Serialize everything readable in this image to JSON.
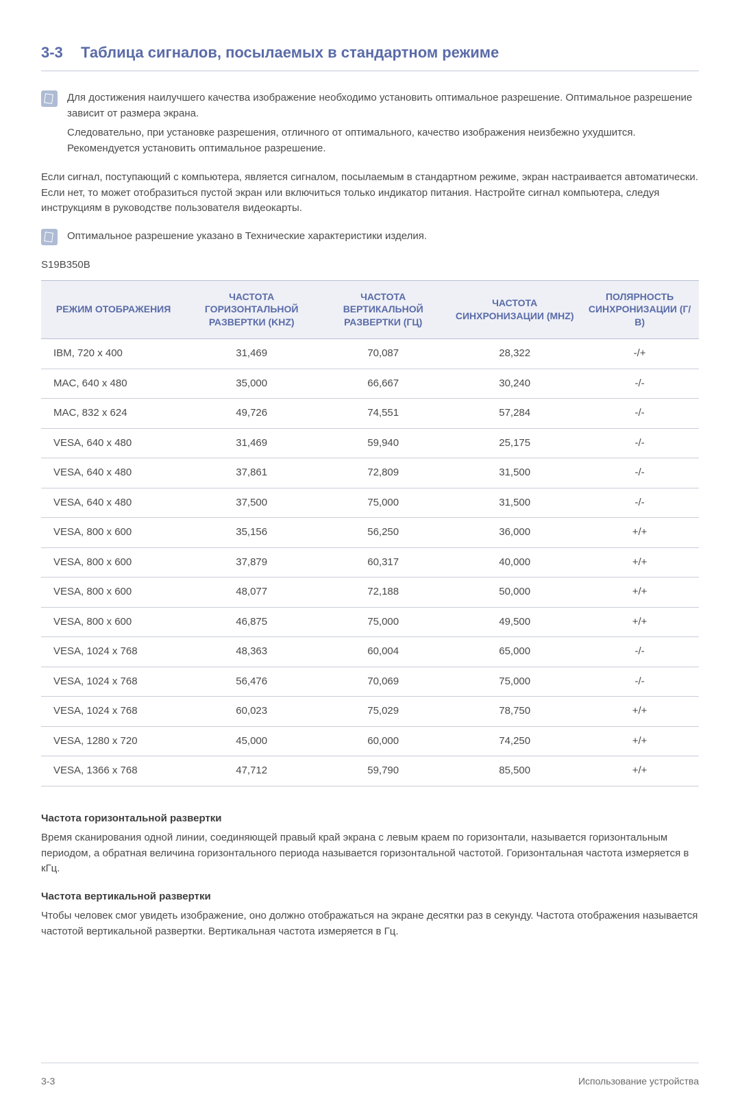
{
  "header": {
    "section_number": "3-3",
    "section_title": "Таблица сигналов, посылаемых в стандартном режиме"
  },
  "note1": {
    "p1": "Для достижения наилучшего качества изображение необходимо установить оптимальное разрешение. Оптимальное разрешение зависит от размера экрана.",
    "p2": "Следовательно, при установке разрешения, отличного от оптимального, качество изображения неизбежно ухудшится. Рекомендуется установить оптимальное разрешение."
  },
  "body_para": "Если сигнал, поступающий с компьютера, является сигналом, посылаемым в стандартном режиме, экран настраивается автоматически. Если нет, то может отобразиться пустой экран или включиться только индикатор питания. Настройте сигнал компьютера, следуя инструкциям в руководстве пользователя видеокарты.",
  "note2": {
    "p1": "Оптимальное разрешение указано в Технические характеристики изделия."
  },
  "model": "S19B350B",
  "table": {
    "columns": [
      "РЕЖИМ ОТОБРАЖЕНИЯ",
      "ЧАСТОТА ГОРИЗОНТАЛЬНОЙ РАЗВЕРТКИ (KHZ)",
      "ЧАСТОТА ВЕРТИКАЛЬНОЙ РАЗВЕРТКИ (ГЦ)",
      "ЧАСТОТА СИНХРОНИЗАЦИИ (MHZ)",
      "ПОЛЯРНОСТЬ СИНХРОНИЗАЦИИ (Г/В)"
    ],
    "rows": [
      [
        "IBM, 720 x 400",
        "31,469",
        "70,087",
        "28,322",
        "-/+"
      ],
      [
        "MAC, 640 x 480",
        "35,000",
        "66,667",
        "30,240",
        "-/-"
      ],
      [
        "MAC, 832 x 624",
        "49,726",
        "74,551",
        "57,284",
        "-/-"
      ],
      [
        "VESA, 640 x 480",
        "31,469",
        "59,940",
        "25,175",
        "-/-"
      ],
      [
        "VESA, 640 x 480",
        "37,861",
        "72,809",
        "31,500",
        "-/-"
      ],
      [
        "VESA, 640 x 480",
        "37,500",
        "75,000",
        "31,500",
        "-/-"
      ],
      [
        "VESA, 800 x 600",
        "35,156",
        "56,250",
        "36,000",
        "+/+"
      ],
      [
        "VESA, 800 x 600",
        "37,879",
        "60,317",
        "40,000",
        "+/+"
      ],
      [
        "VESA, 800 x 600",
        "48,077",
        "72,188",
        "50,000",
        "+/+"
      ],
      [
        "VESA, 800 x 600",
        "46,875",
        "75,000",
        "49,500",
        "+/+"
      ],
      [
        "VESA, 1024 x 768",
        "48,363",
        "60,004",
        "65,000",
        "-/-"
      ],
      [
        "VESA, 1024 x 768",
        "56,476",
        "70,069",
        "75,000",
        "-/-"
      ],
      [
        "VESA, 1024 x 768",
        "60,023",
        "75,029",
        "78,750",
        "+/+"
      ],
      [
        "VESA, 1280 x 720",
        "45,000",
        "60,000",
        "74,250",
        "+/+"
      ],
      [
        "VESA, 1366 x 768",
        "47,712",
        "59,790",
        "85,500",
        "+/+"
      ]
    ],
    "col_widths": [
      "22%",
      "20%",
      "20%",
      "20%",
      "18%"
    ]
  },
  "def1": {
    "heading": "Частота горизонтальной развертки",
    "text": "Время сканирования одной линии, соединяющей правый край экрана с левым краем по горизонтали, называется горизонтальным периодом, а обратная величина горизонтального периода называется горизонтальной частотой. Горизонтальная частота измеряется в кГц."
  },
  "def2": {
    "heading": "Частота вертикальной развертки",
    "text": "Чтобы человек смог увидеть изображение, оно должно отображаться на экране десятки раз в секунду. Частота отображения называется частотой вертикальной развертки. Вертикальная частота измеряется в Гц."
  },
  "footer": {
    "left": "3-3",
    "right": "Использование устройства"
  },
  "style": {
    "accent_color": "#5a6ba8",
    "header_bg": "#eef0f6",
    "border_color": "#c9cdd9",
    "text_color": "#4a4a4a"
  }
}
